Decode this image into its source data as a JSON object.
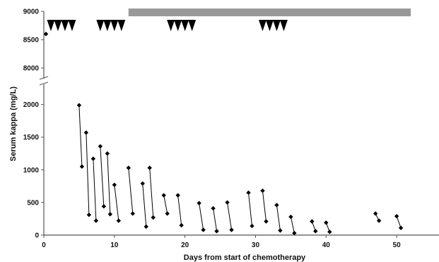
{
  "chart_data": {
    "type": "scatter",
    "title": "",
    "xlabel": "Days from start of chemotherapy",
    "ylabel": "Serum kappa (mg/L)",
    "x_ticks": [
      "0",
      "10",
      "20",
      "30",
      "40",
      "50"
    ],
    "y_ticks_lower": [
      "0",
      "500",
      "1000",
      "1500",
      "2000"
    ],
    "y_ticks_upper": [
      "8000",
      "8500",
      "9000"
    ],
    "xlim": [
      0,
      56
    ],
    "ylim_lower": [
      0,
      2300
    ],
    "ylim_upper": [
      7900,
      9000
    ],
    "axis_break": true,
    "grid": false,
    "legend": "none",
    "marker_color": "#000000",
    "treatment_bar": {
      "x_start": 12,
      "x_end": 52,
      "color": "#999999"
    },
    "treatment_triangles": [
      [
        1,
        2,
        3,
        4
      ],
      [
        8,
        9,
        10,
        11
      ],
      [
        18,
        19,
        20,
        21
      ],
      [
        31,
        32,
        33,
        34
      ]
    ],
    "single_points": [
      {
        "x": 0.3,
        "y": 8600
      }
    ],
    "pairs": [
      {
        "x": [
          5.0,
          5.4
        ],
        "y": [
          1990,
          1050
        ]
      },
      {
        "x": [
          6.0,
          6.4
        ],
        "y": [
          1570,
          310
        ]
      },
      {
        "x": [
          7.0,
          7.4
        ],
        "y": [
          1170,
          220
        ]
      },
      {
        "x": [
          8.0,
          8.5
        ],
        "y": [
          1360,
          440
        ]
      },
      {
        "x": [
          9.0,
          9.4
        ],
        "y": [
          1250,
          320
        ]
      },
      {
        "x": [
          10.0,
          10.6
        ],
        "y": [
          770,
          220
        ]
      },
      {
        "x": [
          12.0,
          12.6
        ],
        "y": [
          1030,
          330
        ]
      },
      {
        "x": [
          14.0,
          14.5
        ],
        "y": [
          790,
          130
        ]
      },
      {
        "x": [
          15.0,
          15.5
        ],
        "y": [
          1030,
          270
        ]
      },
      {
        "x": [
          17.0,
          17.5
        ],
        "y": [
          610,
          330
        ]
      },
      {
        "x": [
          19.0,
          19.5
        ],
        "y": [
          610,
          150
        ]
      },
      {
        "x": [
          22.0,
          22.6
        ],
        "y": [
          490,
          80
        ]
      },
      {
        "x": [
          24.0,
          24.5
        ],
        "y": [
          410,
          60
        ]
      },
      {
        "x": [
          26.0,
          26.6
        ],
        "y": [
          500,
          80
        ]
      },
      {
        "x": [
          29.0,
          29.5
        ],
        "y": [
          650,
          140
        ]
      },
      {
        "x": [
          31.0,
          31.5
        ],
        "y": [
          680,
          210
        ]
      },
      {
        "x": [
          33.0,
          33.5
        ],
        "y": [
          460,
          70
        ]
      },
      {
        "x": [
          35.0,
          35.5
        ],
        "y": [
          280,
          30
        ]
      },
      {
        "x": [
          38.0,
          38.5
        ],
        "y": [
          210,
          60
        ]
      },
      {
        "x": [
          40.0,
          40.5
        ],
        "y": [
          190,
          50
        ]
      },
      {
        "x": [
          47.0,
          47.5
        ],
        "y": [
          330,
          220
        ]
      },
      {
        "x": [
          50.0,
          50.6
        ],
        "y": [
          290,
          110
        ]
      }
    ]
  }
}
